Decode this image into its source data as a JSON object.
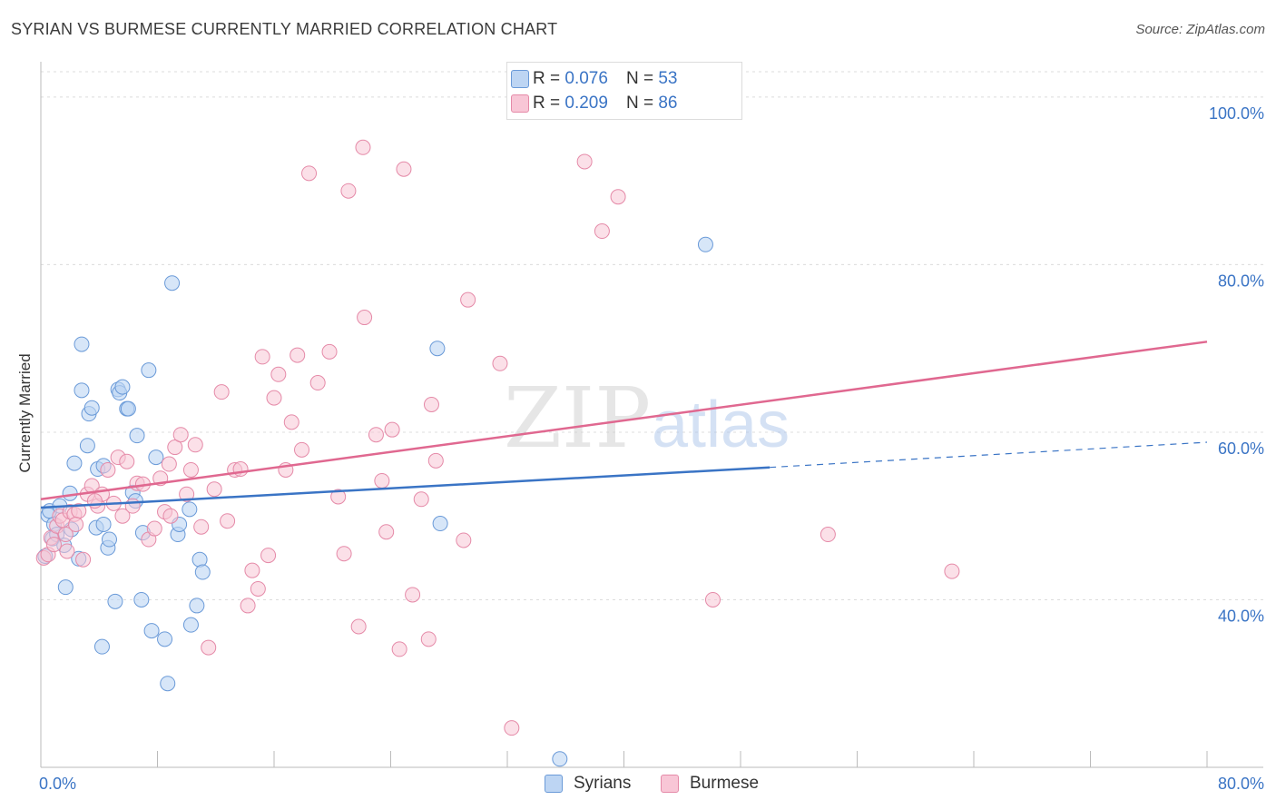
{
  "title": "SYRIAN VS BURMESE CURRENTLY MARRIED CORRELATION CHART",
  "source": "Source: ZipAtlas.com",
  "watermark": {
    "zip": "ZIP",
    "atlas": "atlas"
  },
  "legend": {
    "rows": [
      {
        "r_label": "R =",
        "r_value": "0.076",
        "n_label": "N =",
        "n_value": "53"
      },
      {
        "r_label": "R =",
        "r_value": "0.209",
        "n_label": "N =",
        "n_value": "86"
      }
    ]
  },
  "bottom_legend": [
    "Syrians",
    "Burmese"
  ],
  "colors": {
    "syrians_fill": "#bdd5f3",
    "syrians_stroke": "#6a9ad8",
    "syrians_line": "#3a74c5",
    "burmese_fill": "#f8c6d6",
    "burmese_stroke": "#e58aa8",
    "burmese_line": "#e06890",
    "axis_text": "#3a74c5",
    "grid": "#dcdcdc"
  },
  "chart_data": {
    "type": "scatter",
    "title": "SYRIAN VS BURMESE CURRENTLY MARRIED CORRELATION CHART",
    "xlabel": "",
    "ylabel": "Currently Married",
    "xlim": [
      0,
      80
    ],
    "ylim": [
      20.0,
      104.0
    ],
    "x_tick_labels": [
      "0.0%",
      "80.0%"
    ],
    "y_ticks": [
      40,
      60,
      80,
      100
    ],
    "y_tick_labels": [
      "40.0%",
      "60.0%",
      "80.0%",
      "100.0%"
    ],
    "series": [
      {
        "name": "Syrians",
        "R": 0.076,
        "N": 53,
        "trend": {
          "x0": 0,
          "y0": 51.0,
          "x1": 50,
          "y1": 55.8,
          "dash_x1": 80,
          "dash_y1": 58.8
        },
        "points": [
          [
            0.3,
            45.2
          ],
          [
            0.5,
            50.1
          ],
          [
            0.6,
            50.6
          ],
          [
            0.8,
            47.3
          ],
          [
            0.9,
            49.0
          ],
          [
            1.1,
            47.8
          ],
          [
            1.3,
            51.2
          ],
          [
            1.6,
            46.5
          ],
          [
            1.7,
            41.5
          ],
          [
            2.0,
            52.7
          ],
          [
            2.1,
            48.4
          ],
          [
            2.3,
            56.3
          ],
          [
            2.6,
            44.9
          ],
          [
            2.8,
            65.0
          ],
          [
            2.8,
            70.5
          ],
          [
            3.2,
            58.4
          ],
          [
            3.3,
            62.2
          ],
          [
            3.5,
            62.9
          ],
          [
            3.8,
            48.6
          ],
          [
            3.9,
            55.6
          ],
          [
            4.3,
            49.0
          ],
          [
            4.6,
            46.2
          ],
          [
            4.7,
            47.2
          ],
          [
            5.1,
            39.8
          ],
          [
            5.3,
            65.1
          ],
          [
            5.4,
            64.7
          ],
          [
            5.6,
            65.4
          ],
          [
            5.9,
            62.8
          ],
          [
            6.0,
            62.8
          ],
          [
            6.3,
            52.8
          ],
          [
            6.6,
            59.6
          ],
          [
            6.9,
            40.0
          ],
          [
            7.0,
            48.0
          ],
          [
            7.4,
            67.4
          ],
          [
            7.6,
            36.3
          ],
          [
            7.9,
            57.0
          ],
          [
            8.5,
            35.3
          ],
          [
            8.7,
            30.0
          ],
          [
            9.0,
            77.8
          ],
          [
            9.4,
            47.8
          ],
          [
            9.5,
            49.0
          ],
          [
            10.2,
            50.8
          ],
          [
            10.3,
            37.0
          ],
          [
            10.7,
            39.3
          ],
          [
            10.9,
            44.8
          ],
          [
            11.1,
            43.3
          ],
          [
            4.2,
            34.4
          ],
          [
            4.3,
            56.0
          ],
          [
            27.2,
            70.0
          ],
          [
            27.4,
            49.1
          ],
          [
            35.6,
            21.0
          ],
          [
            45.6,
            82.4
          ],
          [
            6.5,
            51.8
          ]
        ]
      },
      {
        "name": "Burmese",
        "R": 0.209,
        "N": 86,
        "trend": {
          "x0": 0,
          "y0": 52.0,
          "x1": 80,
          "y1": 70.8
        },
        "points": [
          [
            0.2,
            45.0
          ],
          [
            0.5,
            45.4
          ],
          [
            0.7,
            47.4
          ],
          [
            0.9,
            46.6
          ],
          [
            1.1,
            48.8
          ],
          [
            1.3,
            50.0
          ],
          [
            1.5,
            49.5
          ],
          [
            1.7,
            47.8
          ],
          [
            2.0,
            50.5
          ],
          [
            2.3,
            50.2
          ],
          [
            2.6,
            50.6
          ],
          [
            2.9,
            44.8
          ],
          [
            3.2,
            52.6
          ],
          [
            3.5,
            53.6
          ],
          [
            3.9,
            51.2
          ],
          [
            4.2,
            52.6
          ],
          [
            4.6,
            55.5
          ],
          [
            5.0,
            51.5
          ],
          [
            5.3,
            57.0
          ],
          [
            5.6,
            50.0
          ],
          [
            5.9,
            56.5
          ],
          [
            6.3,
            51.2
          ],
          [
            6.6,
            53.9
          ],
          [
            7.0,
            53.8
          ],
          [
            7.4,
            47.2
          ],
          [
            7.8,
            48.5
          ],
          [
            8.2,
            54.5
          ],
          [
            8.5,
            50.5
          ],
          [
            8.8,
            56.2
          ],
          [
            9.2,
            58.2
          ],
          [
            9.6,
            59.7
          ],
          [
            10.0,
            52.6
          ],
          [
            10.3,
            55.5
          ],
          [
            10.6,
            58.5
          ],
          [
            11.0,
            48.7
          ],
          [
            11.5,
            34.3
          ],
          [
            11.9,
            53.2
          ],
          [
            12.4,
            64.8
          ],
          [
            12.8,
            49.4
          ],
          [
            13.3,
            55.5
          ],
          [
            13.7,
            55.6
          ],
          [
            14.2,
            39.3
          ],
          [
            14.5,
            43.5
          ],
          [
            14.9,
            41.3
          ],
          [
            15.2,
            69.0
          ],
          [
            15.6,
            45.3
          ],
          [
            16.0,
            64.1
          ],
          [
            16.3,
            66.9
          ],
          [
            16.8,
            55.5
          ],
          [
            17.2,
            61.2
          ],
          [
            17.6,
            69.2
          ],
          [
            17.9,
            57.9
          ],
          [
            18.4,
            90.9
          ],
          [
            19.0,
            65.9
          ],
          [
            19.8,
            69.6
          ],
          [
            20.4,
            52.3
          ],
          [
            20.8,
            45.5
          ],
          [
            21.1,
            88.8
          ],
          [
            21.8,
            36.8
          ],
          [
            22.2,
            73.7
          ],
          [
            22.1,
            94.0
          ],
          [
            23.0,
            59.7
          ],
          [
            23.4,
            54.2
          ],
          [
            23.7,
            48.1
          ],
          [
            24.1,
            60.3
          ],
          [
            24.6,
            34.1
          ],
          [
            24.9,
            91.4
          ],
          [
            25.5,
            40.6
          ],
          [
            26.1,
            52.0
          ],
          [
            26.6,
            35.3
          ],
          [
            26.8,
            63.3
          ],
          [
            27.1,
            56.6
          ],
          [
            29.0,
            47.1
          ],
          [
            29.3,
            75.8
          ],
          [
            31.5,
            68.2
          ],
          [
            32.3,
            24.7
          ],
          [
            37.3,
            92.3
          ],
          [
            38.5,
            84.0
          ],
          [
            39.6,
            88.1
          ],
          [
            46.1,
            40.0
          ],
          [
            54.0,
            47.8
          ],
          [
            62.5,
            43.4
          ],
          [
            1.8,
            45.8
          ],
          [
            2.4,
            49.0
          ],
          [
            3.7,
            51.8
          ],
          [
            8.9,
            50.0
          ]
        ]
      }
    ]
  }
}
